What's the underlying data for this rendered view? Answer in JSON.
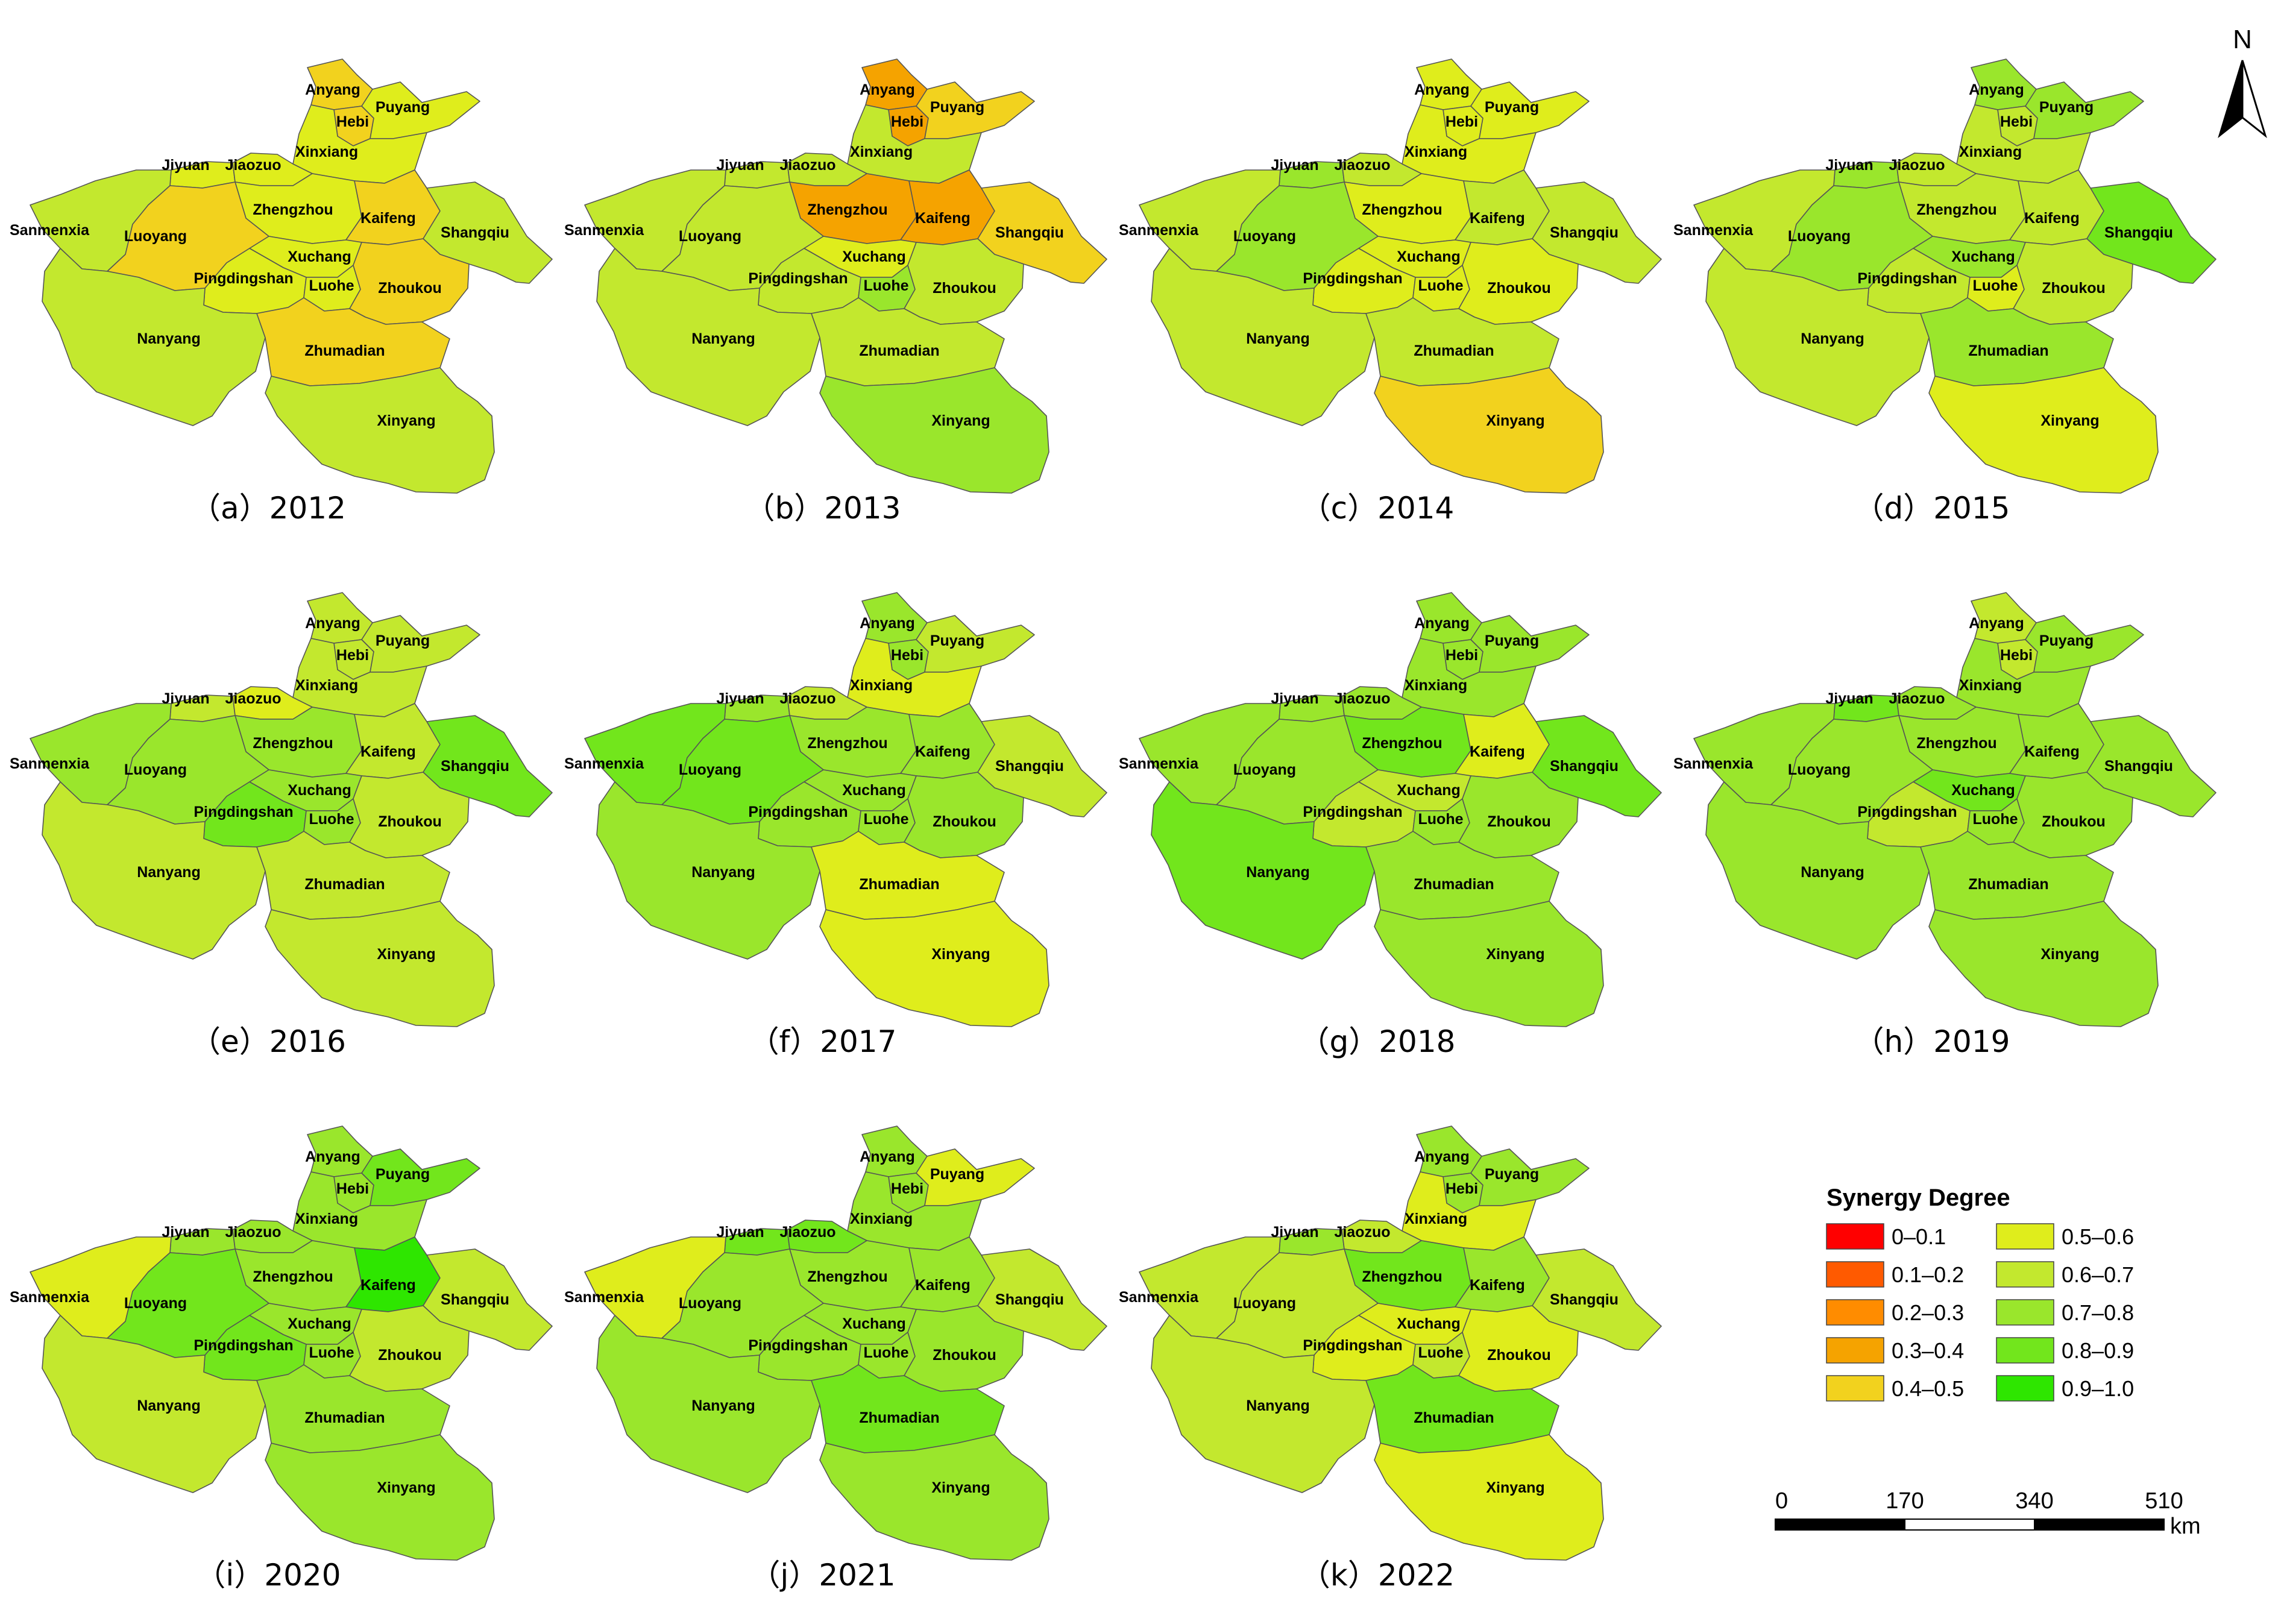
{
  "regions": [
    "Anyang",
    "Hebi",
    "Puyang",
    "Xinxiang",
    "Jiyuan",
    "Jiaozuo",
    "Zhengzhou",
    "Kaifeng",
    "Shangqiu",
    "Sanmenxia",
    "Luoyang",
    "Xuchang",
    "Pingdingshan",
    "Luohe",
    "Zhoukou",
    "Nanyang",
    "Zhumadian",
    "Xinyang"
  ],
  "panels": [
    {
      "caption": "（a）2012",
      "classes": {
        "Anyang": "0.4–0.5",
        "Hebi": "0.4–0.5",
        "Puyang": "0.5–0.6",
        "Xinxiang": "0.5–0.6",
        "Jiyuan": "0.5–0.6",
        "Jiaozuo": "0.5–0.6",
        "Zhengzhou": "0.5–0.6",
        "Kaifeng": "0.4–0.5",
        "Shangqiu": "0.6–0.7",
        "Sanmenxia": "0.6–0.7",
        "Luoyang": "0.4–0.5",
        "Xuchang": "0.5–0.6",
        "Pingdingshan": "0.5–0.6",
        "Luohe": "0.5–0.6",
        "Zhoukou": "0.4–0.5",
        "Nanyang": "0.6–0.7",
        "Zhumadian": "0.4–0.5",
        "Xinyang": "0.6–0.7"
      }
    },
    {
      "caption": "（b）2013",
      "classes": {
        "Anyang": "0.3–0.4",
        "Hebi": "0.3–0.4",
        "Puyang": "0.4–0.5",
        "Xinxiang": "0.6–0.7",
        "Jiyuan": "0.6–0.7",
        "Jiaozuo": "0.6–0.7",
        "Zhengzhou": "0.3–0.4",
        "Kaifeng": "0.3–0.4",
        "Shangqiu": "0.4–0.5",
        "Sanmenxia": "0.6–0.7",
        "Luoyang": "0.6–0.7",
        "Xuchang": "0.5–0.6",
        "Pingdingshan": "0.6–0.7",
        "Luohe": "0.7–0.8",
        "Zhoukou": "0.6–0.7",
        "Nanyang": "0.6–0.7",
        "Zhumadian": "0.6–0.7",
        "Xinyang": "0.7–0.8"
      }
    },
    {
      "caption": "（c）2014",
      "classes": {
        "Anyang": "0.5–0.6",
        "Hebi": "0.5–0.6",
        "Puyang": "0.5–0.6",
        "Xinxiang": "0.5–0.6",
        "Jiyuan": "0.7–0.8",
        "Jiaozuo": "0.6–0.7",
        "Zhengzhou": "0.5–0.6",
        "Kaifeng": "0.6–0.7",
        "Shangqiu": "0.6–0.7",
        "Sanmenxia": "0.6–0.7",
        "Luoyang": "0.7–0.8",
        "Xuchang": "0.5–0.6",
        "Pingdingshan": "0.5–0.6",
        "Luohe": "0.5–0.6",
        "Zhoukou": "0.5–0.6",
        "Nanyang": "0.6–0.7",
        "Zhumadian": "0.6–0.7",
        "Xinyang": "0.4–0.5"
      }
    },
    {
      "caption": "（d）2015",
      "classes": {
        "Anyang": "0.7–0.8",
        "Hebi": "0.6–0.7",
        "Puyang": "0.7–0.8",
        "Xinxiang": "0.6–0.7",
        "Jiyuan": "0.7–0.8",
        "Jiaozuo": "0.6–0.7",
        "Zhengzhou": "0.6–0.7",
        "Kaifeng": "0.6–0.7",
        "Shangqiu": "0.8–0.9",
        "Sanmenxia": "0.6–0.7",
        "Luoyang": "0.7–0.8",
        "Xuchang": "0.7–0.8",
        "Pingdingshan": "0.6–0.7",
        "Luohe": "0.5–0.6",
        "Zhoukou": "0.6–0.7",
        "Nanyang": "0.6–0.7",
        "Zhumadian": "0.7–0.8",
        "Xinyang": "0.5–0.6"
      }
    },
    {
      "caption": "（e）2016",
      "classes": {
        "Anyang": "0.6–0.7",
        "Hebi": "0.6–0.7",
        "Puyang": "0.6–0.7",
        "Xinxiang": "0.6–0.7",
        "Jiyuan": "0.6–0.7",
        "Jiaozuo": "0.5–0.6",
        "Zhengzhou": "0.7–0.8",
        "Kaifeng": "0.6–0.7",
        "Shangqiu": "0.8–0.9",
        "Sanmenxia": "0.7–0.8",
        "Luoyang": "0.7–0.8",
        "Xuchang": "0.7–0.8",
        "Pingdingshan": "0.8–0.9",
        "Luohe": "0.7–0.8",
        "Zhoukou": "0.6–0.7",
        "Nanyang": "0.6–0.7",
        "Zhumadian": "0.6–0.7",
        "Xinyang": "0.6–0.7"
      }
    },
    {
      "caption": "（f）2017",
      "classes": {
        "Anyang": "0.7–0.8",
        "Hebi": "0.7–0.8",
        "Puyang": "0.6–0.7",
        "Xinxiang": "0.5–0.6",
        "Jiyuan": "0.7–0.8",
        "Jiaozuo": "0.6–0.7",
        "Zhengzhou": "0.7–0.8",
        "Kaifeng": "0.7–0.8",
        "Shangqiu": "0.6–0.7",
        "Sanmenxia": "0.8–0.9",
        "Luoyang": "0.8–0.9",
        "Xuchang": "0.7–0.8",
        "Pingdingshan": "0.7–0.8",
        "Luohe": "0.7–0.8",
        "Zhoukou": "0.7–0.8",
        "Nanyang": "0.7–0.8",
        "Zhumadian": "0.5–0.6",
        "Xinyang": "0.5–0.6"
      }
    },
    {
      "caption": "（g）2018",
      "classes": {
        "Anyang": "0.7–0.8",
        "Hebi": "0.7–0.8",
        "Puyang": "0.7–0.8",
        "Xinxiang": "0.7–0.8",
        "Jiyuan": "0.7–0.8",
        "Jiaozuo": "0.7–0.8",
        "Zhengzhou": "0.8–0.9",
        "Kaifeng": "0.5–0.6",
        "Shangqiu": "0.8–0.9",
        "Sanmenxia": "0.7–0.8",
        "Luoyang": "0.7–0.8",
        "Xuchang": "0.6–0.7",
        "Pingdingshan": "0.6–0.7",
        "Luohe": "0.7–0.8",
        "Zhoukou": "0.7–0.8",
        "Nanyang": "0.8–0.9",
        "Zhumadian": "0.7–0.8",
        "Xinyang": "0.7–0.8"
      }
    },
    {
      "caption": "（h）2019",
      "classes": {
        "Anyang": "0.6–0.7",
        "Hebi": "0.6–0.7",
        "Puyang": "0.7–0.8",
        "Xinxiang": "0.7–0.8",
        "Jiyuan": "0.8–0.9",
        "Jiaozuo": "0.7–0.8",
        "Zhengzhou": "0.7–0.8",
        "Kaifeng": "0.7–0.8",
        "Shangqiu": "0.7–0.8",
        "Sanmenxia": "0.7–0.8",
        "Luoyang": "0.7–0.8",
        "Xuchang": "0.8–0.9",
        "Pingdingshan": "0.6–0.7",
        "Luohe": "0.7–0.8",
        "Zhoukou": "0.7–0.8",
        "Nanyang": "0.7–0.8",
        "Zhumadian": "0.7–0.8",
        "Xinyang": "0.7–0.8"
      }
    },
    {
      "caption": "（i）2020",
      "classes": {
        "Anyang": "0.7–0.8",
        "Hebi": "0.7–0.8",
        "Puyang": "0.8–0.9",
        "Xinxiang": "0.7–0.8",
        "Jiyuan": "0.7–0.8",
        "Jiaozuo": "0.7–0.8",
        "Zhengzhou": "0.7–0.8",
        "Kaifeng": "0.9–1.0",
        "Shangqiu": "0.6–0.7",
        "Sanmenxia": "0.5–0.6",
        "Luoyang": "0.8–0.9",
        "Xuchang": "0.7–0.8",
        "Pingdingshan": "0.8–0.9",
        "Luohe": "0.7–0.8",
        "Zhoukou": "0.6–0.7",
        "Nanyang": "0.6–0.7",
        "Zhumadian": "0.7–0.8",
        "Xinyang": "0.7–0.8"
      }
    },
    {
      "caption": "（j）2021",
      "classes": {
        "Anyang": "0.7–0.8",
        "Hebi": "0.7–0.8",
        "Puyang": "0.5–0.6",
        "Xinxiang": "0.7–0.8",
        "Jiyuan": "0.8–0.9",
        "Jiaozuo": "0.8–0.9",
        "Zhengzhou": "0.7–0.8",
        "Kaifeng": "0.7–0.8",
        "Shangqiu": "0.6–0.7",
        "Sanmenxia": "0.5–0.6",
        "Luoyang": "0.7–0.8",
        "Xuchang": "0.7–0.8",
        "Pingdingshan": "0.7–0.8",
        "Luohe": "0.7–0.8",
        "Zhoukou": "0.7–0.8",
        "Nanyang": "0.7–0.8",
        "Zhumadian": "0.8–0.9",
        "Xinyang": "0.7–0.8"
      }
    },
    {
      "caption": "（k）2022",
      "classes": {
        "Anyang": "0.7–0.8",
        "Hebi": "0.7–0.8",
        "Puyang": "0.7–0.8",
        "Xinxiang": "0.5–0.6",
        "Jiyuan": "0.7–0.8",
        "Jiaozuo": "0.6–0.7",
        "Zhengzhou": "0.8–0.9",
        "Kaifeng": "0.7–0.8",
        "Shangqiu": "0.6–0.7",
        "Sanmenxia": "0.6–0.7",
        "Luoyang": "0.6–0.7",
        "Xuchang": "0.5–0.6",
        "Pingdingshan": "0.5–0.6",
        "Luohe": "0.6–0.7",
        "Zhoukou": "0.5–0.6",
        "Nanyang": "0.6–0.7",
        "Zhumadian": "0.8–0.9",
        "Xinyang": "0.5–0.6"
      }
    }
  ],
  "legend": {
    "title": "Synergy Degree",
    "classes": [
      {
        "label": "0–0.1",
        "color": "#ff0000"
      },
      {
        "label": "0.1–0.2",
        "color": "#ff5a00"
      },
      {
        "label": "0.2–0.3",
        "color": "#ff8c00"
      },
      {
        "label": "0.3–0.4",
        "color": "#f5a300"
      },
      {
        "label": "0.4–0.5",
        "color": "#f2d21e"
      },
      {
        "label": "0.5–0.6",
        "color": "#dfed1c"
      },
      {
        "label": "0.6–0.7",
        "color": "#c3e82e"
      },
      {
        "label": "0.7–0.8",
        "color": "#9ae62c"
      },
      {
        "label": "0.8–0.9",
        "color": "#72e61c"
      },
      {
        "label": "0.9–1.0",
        "color": "#2ee600"
      }
    ]
  },
  "scale_bar": {
    "ticks": [
      "0",
      "170",
      "340",
      "510"
    ],
    "unit": "km"
  },
  "north_arrow": {
    "label": "N"
  }
}
